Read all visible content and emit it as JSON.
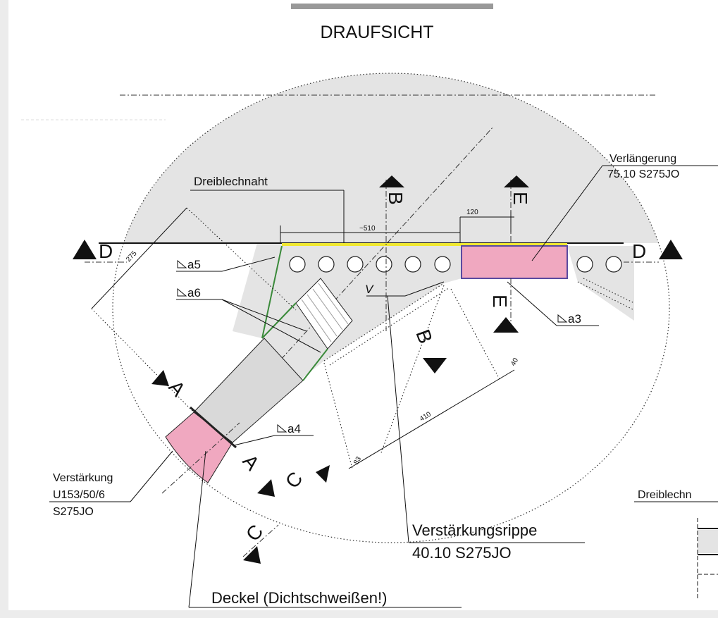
{
  "title": "DRAUFSICHT",
  "sections": {
    "d_left": "D",
    "d_right": "D",
    "b_top": "B",
    "b_bottom": "B",
    "e_top": "E",
    "e_bottom": "E",
    "a_top": "A",
    "a_bottom": "A",
    "c_top": "C",
    "c_bottom": "C"
  },
  "dimensions": {
    "overall": "~510",
    "offset": "120",
    "diagonal": "275",
    "rib": "410",
    "edge": "40",
    "end": "83"
  },
  "welds": [
    "a5",
    "a6",
    "a3",
    "a4"
  ],
  "labels": {
    "seam": "Dreiblechnaht",
    "extension": [
      "Verlängerung",
      "75.10 S275JO"
    ],
    "reinforcement": [
      "Verstärkung",
      "U153/50/6",
      "S275JO"
    ],
    "rib": [
      "Verstärkungsrippe",
      "40.10 S275JO"
    ],
    "cover": "Deckel (Dichtschweißen!)",
    "v": "V",
    "detail": "Dreiblechn"
  }
}
